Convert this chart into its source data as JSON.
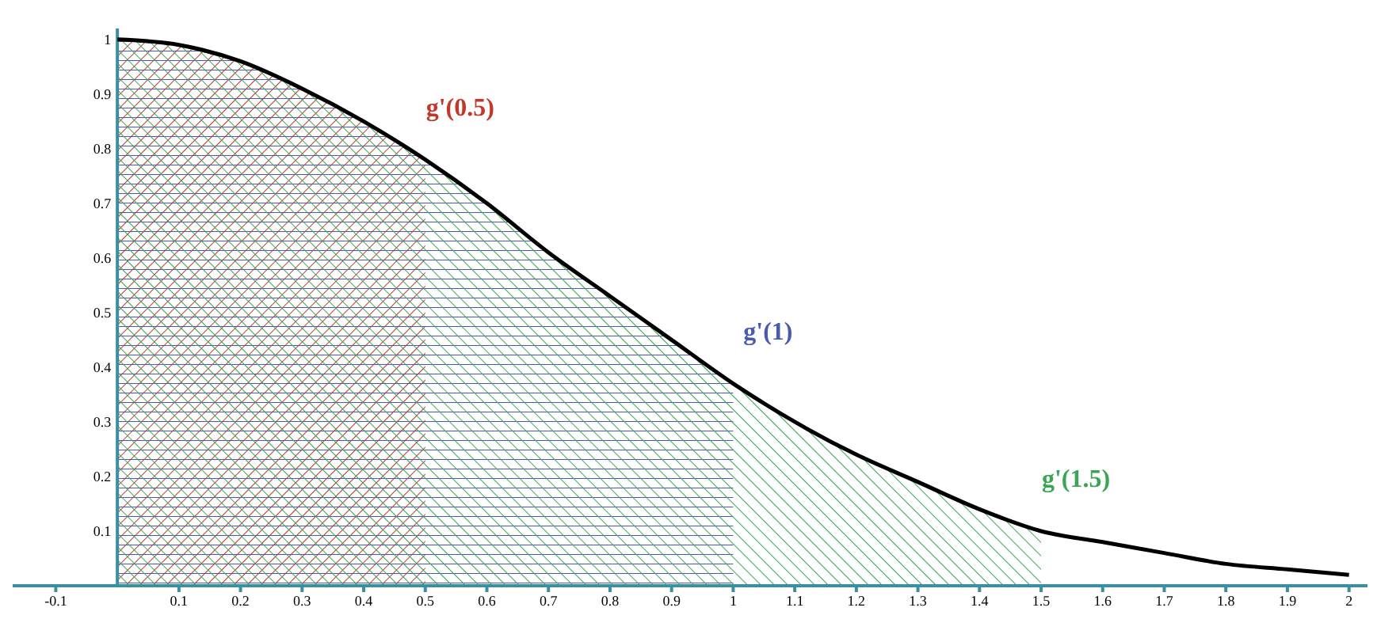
{
  "chart_data": {
    "type": "line",
    "x": [
      0,
      0.1,
      0.2,
      0.3,
      0.4,
      0.5,
      0.6,
      0.7,
      0.8,
      0.9,
      1,
      1.1,
      1.2,
      1.3,
      1.4,
      1.5,
      1.6,
      1.7,
      1.8,
      1.9,
      2
    ],
    "series": [
      {
        "type": "area",
        "color": "#c0392b",
        "values": [
          1,
          0.99,
          0.96,
          0.91,
          0.85,
          0.78,
          null,
          null,
          null,
          null,
          null,
          null,
          null,
          null,
          null,
          null,
          null,
          null,
          null,
          null,
          null
        ]
      },
      {
        "type": "area",
        "color": "#4a5ab0",
        "values": [
          1,
          0.99,
          0.96,
          0.91,
          0.85,
          0.78,
          0.7,
          0.61,
          0.53,
          0.45,
          0.37,
          null,
          null,
          null,
          null,
          null,
          null,
          null,
          null,
          null,
          null
        ]
      },
      {
        "type": "area",
        "color": "#3aa655",
        "values": [
          1,
          0.99,
          0.96,
          0.91,
          0.85,
          0.78,
          0.7,
          0.61,
          0.53,
          0.45,
          0.37,
          0.3,
          0.24,
          0.19,
          0.14,
          0.1,
          null,
          null,
          null,
          null,
          null
        ]
      },
      {
        "color": "#000000",
        "values": [
          1,
          0.99,
          0.96,
          0.91,
          0.85,
          0.78,
          0.7,
          0.61,
          0.53,
          0.45,
          0.37,
          0.3,
          0.24,
          0.19,
          0.14,
          0.1,
          0.08,
          0.06,
          0.04,
          0.03,
          0.02
        ]
      }
    ],
    "xlim": [
      -0.17,
      2.03
    ],
    "ylim": [
      0,
      1.02
    ],
    "xticks": [
      -0.1,
      0.1,
      0.2,
      0.3,
      0.4,
      0.5,
      0.6,
      0.7,
      0.8,
      0.9,
      1,
      1.1,
      1.2,
      1.3,
      1.4,
      1.5,
      1.6,
      1.7,
      1.8,
      1.9,
      2
    ],
    "yticks": [
      0.1,
      0.2,
      0.3,
      0.4,
      0.5,
      0.6,
      0.7,
      0.8,
      0.9,
      1
    ],
    "annotations": [
      {
        "text": "g'(0.5)",
        "x": 0.5,
        "y": 0.78
      },
      {
        "text": "g'(1)",
        "x": 1,
        "y": 0.37
      },
      {
        "text": "g'(1.5)",
        "x": 1.5,
        "y": 0.1
      }
    ],
    "grid": false,
    "marker": "none"
  }
}
